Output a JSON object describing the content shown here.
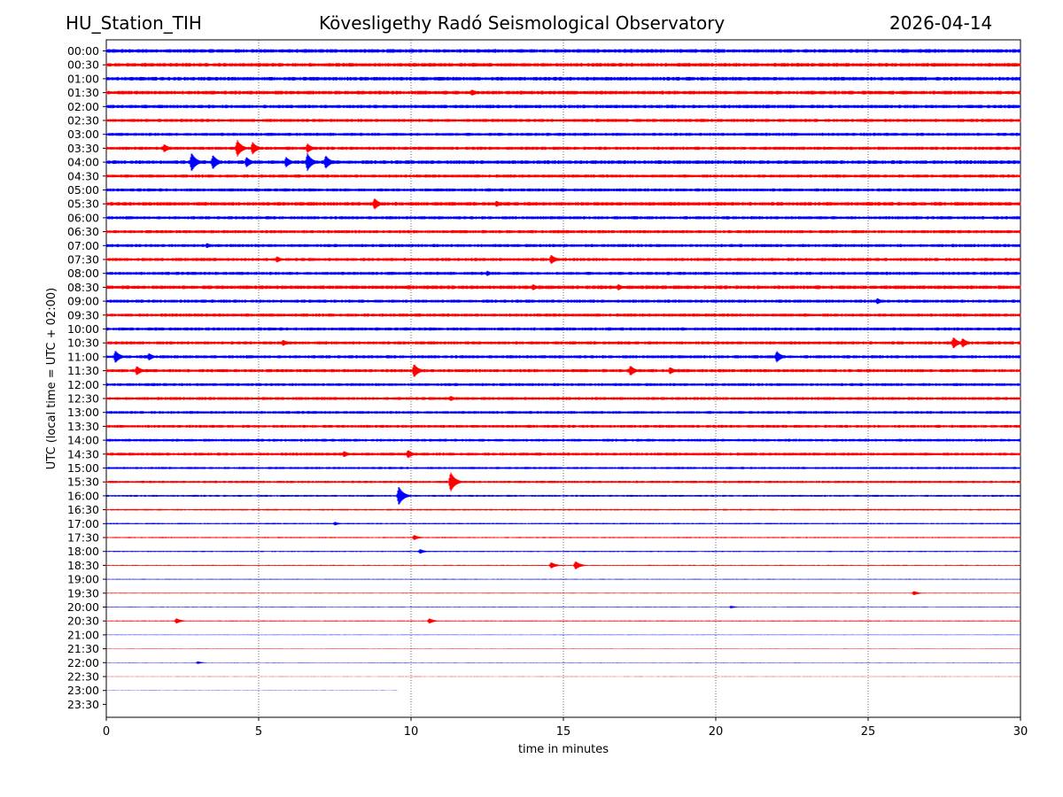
{
  "header": {
    "station": "HU_Station_TIH",
    "observatory": "Kövesligethy Radó Seismological Observatory",
    "date": "2026-04-14"
  },
  "chart_data": {
    "type": "line",
    "title": "Kövesligethy Radó Seismological Observatory",
    "xlabel": "time in minutes",
    "ylabel": "UTC (local time = UTC + 02:00)",
    "xlim": [
      0,
      30
    ],
    "xticks": [
      0,
      5,
      10,
      15,
      20,
      25,
      30
    ],
    "grid": "vertical dotted at x ticks",
    "colors": {
      "even_rows": "#0000ff",
      "odd_rows": "#ff0000"
    },
    "series": [
      {
        "label": "00:00",
        "amp": 0.35,
        "end": 30,
        "events": [
          [
            27.0,
            0.4
          ]
        ]
      },
      {
        "label": "00:30",
        "amp": 0.35,
        "end": 30,
        "events": []
      },
      {
        "label": "01:00",
        "amp": 0.35,
        "end": 30,
        "events": []
      },
      {
        "label": "01:30",
        "amp": 0.35,
        "end": 30,
        "events": [
          [
            12.0,
            0.6
          ]
        ]
      },
      {
        "label": "02:00",
        "amp": 0.33,
        "end": 30,
        "events": []
      },
      {
        "label": "02:30",
        "amp": 0.3,
        "end": 30,
        "events": []
      },
      {
        "label": "03:00",
        "amp": 0.3,
        "end": 30,
        "events": []
      },
      {
        "label": "03:30",
        "amp": 0.3,
        "end": 30,
        "events": [
          [
            1.9,
            0.8
          ],
          [
            4.3,
            1.6
          ],
          [
            4.8,
            1.2
          ],
          [
            6.6,
            0.9
          ]
        ]
      },
      {
        "label": "04:00",
        "amp": 0.35,
        "end": 30,
        "events": [
          [
            2.8,
            1.8
          ],
          [
            3.5,
            1.4
          ],
          [
            4.6,
            1.0
          ],
          [
            5.9,
            1.0
          ],
          [
            6.6,
            1.7
          ],
          [
            7.2,
            1.3
          ]
        ]
      },
      {
        "label": "04:30",
        "amp": 0.3,
        "end": 30,
        "events": []
      },
      {
        "label": "05:00",
        "amp": 0.3,
        "end": 30,
        "events": []
      },
      {
        "label": "05:30",
        "amp": 0.35,
        "end": 30,
        "events": [
          [
            8.8,
            1.1
          ],
          [
            12.8,
            0.6
          ]
        ]
      },
      {
        "label": "06:00",
        "amp": 0.3,
        "end": 30,
        "events": []
      },
      {
        "label": "06:30",
        "amp": 0.3,
        "end": 30,
        "events": []
      },
      {
        "label": "07:00",
        "amp": 0.3,
        "end": 30,
        "events": [
          [
            3.3,
            0.5
          ]
        ]
      },
      {
        "label": "07:30",
        "amp": 0.3,
        "end": 30,
        "events": [
          [
            5.6,
            0.6
          ],
          [
            14.6,
            0.9
          ]
        ]
      },
      {
        "label": "08:00",
        "amp": 0.3,
        "end": 30,
        "events": [
          [
            12.5,
            0.5
          ]
        ]
      },
      {
        "label": "08:30",
        "amp": 0.35,
        "end": 30,
        "events": [
          [
            14.0,
            0.6
          ],
          [
            16.8,
            0.6
          ]
        ]
      },
      {
        "label": "09:00",
        "amp": 0.3,
        "end": 30,
        "events": [
          [
            25.3,
            0.6
          ]
        ]
      },
      {
        "label": "09:30",
        "amp": 0.3,
        "end": 30,
        "events": []
      },
      {
        "label": "10:00",
        "amp": 0.3,
        "end": 30,
        "events": []
      },
      {
        "label": "10:30",
        "amp": 0.3,
        "end": 30,
        "events": [
          [
            5.8,
            0.6
          ],
          [
            27.8,
            1.1
          ],
          [
            28.1,
            0.9
          ]
        ]
      },
      {
        "label": "11:00",
        "amp": 0.3,
        "end": 30,
        "events": [
          [
            0.3,
            1.2
          ],
          [
            1.4,
            0.7
          ],
          [
            22.0,
            1.1
          ]
        ]
      },
      {
        "label": "11:30",
        "amp": 0.3,
        "end": 30,
        "events": [
          [
            1.0,
            0.9
          ],
          [
            10.1,
            1.3
          ],
          [
            17.2,
            1.0
          ],
          [
            18.5,
            0.7
          ]
        ]
      },
      {
        "label": "12:00",
        "amp": 0.28,
        "end": 30,
        "events": []
      },
      {
        "label": "12:30",
        "amp": 0.28,
        "end": 30,
        "events": [
          [
            11.3,
            0.5
          ]
        ]
      },
      {
        "label": "13:00",
        "amp": 0.27,
        "end": 30,
        "events": []
      },
      {
        "label": "13:30",
        "amp": 0.27,
        "end": 30,
        "events": []
      },
      {
        "label": "14:00",
        "amp": 0.26,
        "end": 30,
        "events": []
      },
      {
        "label": "14:30",
        "amp": 0.28,
        "end": 30,
        "events": [
          [
            7.8,
            0.6
          ],
          [
            9.9,
            0.8
          ]
        ]
      },
      {
        "label": "15:00",
        "amp": 0.22,
        "end": 30,
        "events": []
      },
      {
        "label": "15:30",
        "amp": 0.22,
        "end": 30,
        "events": [
          [
            11.3,
            1.9
          ]
        ]
      },
      {
        "label": "16:00",
        "amp": 0.18,
        "end": 30,
        "events": [
          [
            9.6,
            1.8
          ]
        ]
      },
      {
        "label": "16:30",
        "amp": 0.15,
        "end": 30,
        "events": []
      },
      {
        "label": "17:00",
        "amp": 0.14,
        "end": 30,
        "events": [
          [
            7.5,
            0.35
          ]
        ]
      },
      {
        "label": "17:30",
        "amp": 0.12,
        "end": 30,
        "events": [
          [
            10.1,
            0.5
          ]
        ]
      },
      {
        "label": "18:00",
        "amp": 0.12,
        "end": 30,
        "events": [
          [
            10.3,
            0.45
          ]
        ]
      },
      {
        "label": "18:30",
        "amp": 0.1,
        "end": 30,
        "events": [
          [
            14.6,
            0.6
          ],
          [
            15.4,
            0.8
          ]
        ]
      },
      {
        "label": "19:00",
        "amp": 0.08,
        "end": 30,
        "events": []
      },
      {
        "label": "19:30",
        "amp": 0.08,
        "end": 30,
        "events": [
          [
            26.5,
            0.4
          ]
        ]
      },
      {
        "label": "20:00",
        "amp": 0.07,
        "end": 30,
        "events": [
          [
            20.5,
            0.25
          ]
        ]
      },
      {
        "label": "20:30",
        "amp": 0.1,
        "end": 30,
        "events": [
          [
            2.3,
            0.5
          ],
          [
            10.6,
            0.5
          ]
        ]
      },
      {
        "label": "21:00",
        "amp": 0.05,
        "end": 30,
        "events": []
      },
      {
        "label": "21:30",
        "amp": 0.05,
        "end": 30,
        "events": []
      },
      {
        "label": "22:00",
        "amp": 0.05,
        "end": 30,
        "events": [
          [
            3.0,
            0.25
          ]
        ]
      },
      {
        "label": "22:30",
        "amp": 0.04,
        "end": 30,
        "events": []
      },
      {
        "label": "23:00",
        "amp": 0.03,
        "end": 9.55,
        "events": []
      },
      {
        "label": "23:30",
        "amp": 0,
        "end": 0,
        "events": []
      }
    ]
  }
}
